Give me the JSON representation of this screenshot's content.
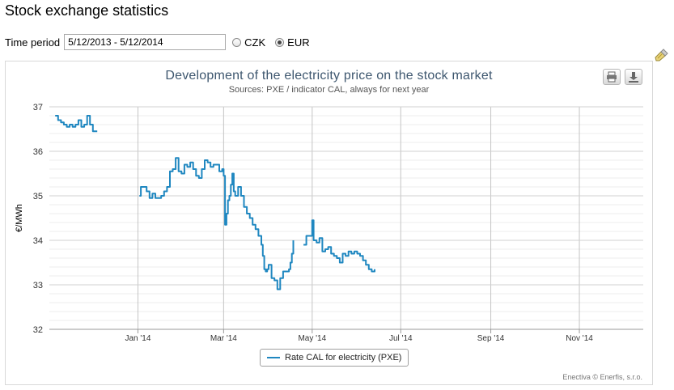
{
  "page": {
    "title": "Stock exchange statistics"
  },
  "filters": {
    "time_period_label": "Time period",
    "time_period_value": "5/12/2013 - 5/12/2014",
    "currency_options": [
      {
        "label": "CZK",
        "selected": false
      },
      {
        "label": "EUR",
        "selected": true
      }
    ]
  },
  "chart_data": {
    "type": "line",
    "title": "Development of the electricity price on the stock market",
    "subtitle": "Sources: PXE / indicator CAL, always for next year",
    "ylabel": "€/MWh",
    "xlabel": "",
    "ylim": [
      32,
      37
    ],
    "y_ticks": [
      "32",
      "33",
      "34",
      "35",
      "36",
      "37"
    ],
    "x_tick_labels": [
      "Jan '14",
      "Mar '14",
      "May '14",
      "Jul '14",
      "Sep '14",
      "Nov '14"
    ],
    "xlim": [
      "2013-11-01",
      "2014-12-15"
    ],
    "x_ticks": [
      "2014-01-01",
      "2014-03-01",
      "2014-05-01",
      "2014-07-01",
      "2014-09-01",
      "2014-11-01"
    ],
    "grid": true,
    "legend": "bottom-center",
    "line_color": "#1f87c0",
    "series": [
      {
        "name": "Rate CAL for electricity (PXE)",
        "segments": [
          [
            [
              "2013-11-05",
              36.8
            ],
            [
              "2013-11-07",
              36.7
            ],
            [
              "2013-11-09",
              36.65
            ],
            [
              "2013-11-11",
              36.6
            ],
            [
              "2013-11-13",
              36.55
            ],
            [
              "2013-11-15",
              36.6
            ],
            [
              "2013-11-17",
              36.55
            ],
            [
              "2013-11-19",
              36.6
            ],
            [
              "2013-11-21",
              36.7
            ],
            [
              "2013-11-23",
              36.55
            ],
            [
              "2013-11-25",
              36.6
            ],
            [
              "2013-11-27",
              36.8
            ],
            [
              "2013-11-29",
              36.6
            ],
            [
              "2013-12-01",
              36.45
            ],
            [
              "2013-12-04",
              36.45
            ]
          ],
          [
            [
              "2014-01-02",
              35.0
            ],
            [
              "2014-01-03",
              35.2
            ],
            [
              "2014-01-05",
              35.2
            ],
            [
              "2014-01-07",
              35.1
            ],
            [
              "2014-01-09",
              34.95
            ],
            [
              "2014-01-11",
              35.05
            ],
            [
              "2014-01-13",
              34.95
            ],
            [
              "2014-01-15",
              34.95
            ],
            [
              "2014-01-17",
              35.0
            ],
            [
              "2014-01-19",
              35.1
            ],
            [
              "2014-01-21",
              35.2
            ],
            [
              "2014-01-23",
              35.55
            ],
            [
              "2014-01-25",
              35.6
            ],
            [
              "2014-01-27",
              35.85
            ],
            [
              "2014-01-29",
              35.55
            ],
            [
              "2014-01-31",
              35.5
            ],
            [
              "2014-02-02",
              35.7
            ],
            [
              "2014-02-04",
              35.65
            ],
            [
              "2014-02-06",
              35.75
            ],
            [
              "2014-02-08",
              35.6
            ],
            [
              "2014-02-10",
              35.45
            ],
            [
              "2014-02-12",
              35.4
            ],
            [
              "2014-02-14",
              35.6
            ],
            [
              "2014-02-16",
              35.8
            ],
            [
              "2014-02-18",
              35.75
            ],
            [
              "2014-02-20",
              35.65
            ],
            [
              "2014-02-22",
              35.7
            ],
            [
              "2014-02-24",
              35.7
            ],
            [
              "2014-02-26",
              35.55
            ],
            [
              "2014-02-28",
              35.6
            ],
            [
              "2014-03-01",
              35.45
            ],
            [
              "2014-03-02",
              34.35
            ],
            [
              "2014-03-03",
              34.6
            ],
            [
              "2014-03-04",
              34.9
            ],
            [
              "2014-03-05",
              35.0
            ],
            [
              "2014-03-06",
              35.25
            ],
            [
              "2014-03-07",
              35.5
            ],
            [
              "2014-03-08",
              35.1
            ],
            [
              "2014-03-09",
              35.0
            ],
            [
              "2014-03-11",
              35.2
            ],
            [
              "2014-03-13",
              35.0
            ],
            [
              "2014-03-15",
              34.75
            ],
            [
              "2014-03-17",
              34.6
            ],
            [
              "2014-03-19",
              34.5
            ],
            [
              "2014-03-21",
              34.35
            ],
            [
              "2014-03-23",
              34.25
            ],
            [
              "2014-03-25",
              34.1
            ],
            [
              "2014-03-27",
              33.9
            ],
            [
              "2014-03-28",
              33.65
            ],
            [
              "2014-03-29",
              33.35
            ],
            [
              "2014-03-30",
              33.3
            ],
            [
              "2014-03-31",
              33.35
            ],
            [
              "2014-04-01",
              33.45
            ],
            [
              "2014-04-03",
              33.15
            ],
            [
              "2014-04-05",
              33.1
            ],
            [
              "2014-04-07",
              32.9
            ],
            [
              "2014-04-09",
              33.15
            ],
            [
              "2014-04-11",
              33.3
            ],
            [
              "2014-04-13",
              33.3
            ],
            [
              "2014-04-15",
              33.35
            ],
            [
              "2014-04-16",
              33.5
            ],
            [
              "2014-04-17",
              33.7
            ],
            [
              "2014-04-18",
              34.0
            ]
          ],
          [
            [
              "2014-04-25",
              33.9
            ],
            [
              "2014-04-27",
              34.1
            ],
            [
              "2014-04-29",
              34.1
            ],
            [
              "2014-05-01",
              34.45
            ],
            [
              "2014-05-02",
              34.0
            ],
            [
              "2014-05-04",
              33.95
            ],
            [
              "2014-05-06",
              34.05
            ],
            [
              "2014-05-08",
              33.75
            ],
            [
              "2014-05-10",
              33.8
            ],
            [
              "2014-05-12",
              33.85
            ],
            [
              "2014-05-14",
              33.7
            ],
            [
              "2014-05-16",
              33.65
            ],
            [
              "2014-05-18",
              33.6
            ],
            [
              "2014-05-20",
              33.5
            ],
            [
              "2014-05-22",
              33.7
            ],
            [
              "2014-05-24",
              33.65
            ],
            [
              "2014-05-26",
              33.75
            ],
            [
              "2014-05-28",
              33.7
            ],
            [
              "2014-05-30",
              33.75
            ],
            [
              "2014-06-01",
              33.7
            ],
            [
              "2014-06-03",
              33.65
            ],
            [
              "2014-06-05",
              33.55
            ],
            [
              "2014-06-07",
              33.45
            ],
            [
              "2014-06-09",
              33.35
            ],
            [
              "2014-06-11",
              33.3
            ],
            [
              "2014-06-13",
              33.35
            ]
          ]
        ]
      }
    ]
  },
  "credits": "Enectiva © Enerfis, s.r.o."
}
